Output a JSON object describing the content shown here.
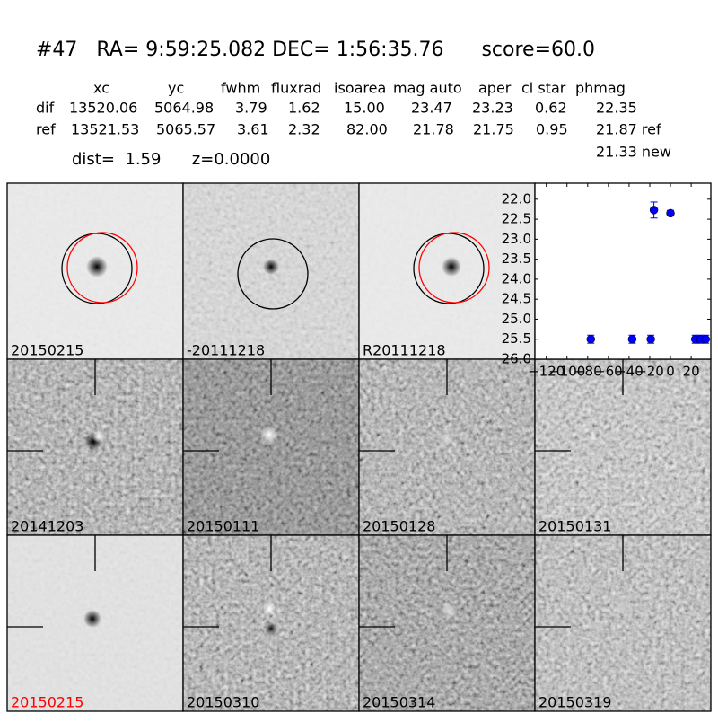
{
  "header": {
    "title": "#47   RA= 9:59:25.082 DEC= 1:56:35.76      score=60.0"
  },
  "table": {
    "columns": [
      "xc",
      "yc",
      "fwhm",
      "fluxrad",
      "isoarea",
      "mag auto",
      "aper",
      "cl star",
      "phmag"
    ],
    "rows": [
      [
        "dif",
        "13520.06",
        "5064.98",
        "3.79",
        "1.62",
        "15.00",
        "23.47",
        "23.23",
        "0.62",
        "22.35"
      ],
      [
        "ref",
        "13521.53",
        "5065.57",
        "3.61",
        "2.32",
        "82.00",
        "21.78",
        "21.75",
        "0.95",
        "21.87 ref"
      ]
    ],
    "extra": "21.33 new"
  },
  "dist": "dist=  1.59      z=0.0000",
  "stamps": [
    {
      "label": "20150215"
    },
    {
      "label": "-20111218"
    },
    {
      "label": "R20111218"
    },
    {
      "label": "20141203"
    },
    {
      "label": "20150111"
    },
    {
      "label": "20150128"
    },
    {
      "label": "20150131"
    },
    {
      "label": "20150215",
      "color": "#ff0000"
    },
    {
      "label": "20150310"
    },
    {
      "label": "20150314"
    },
    {
      "label": "20150319"
    }
  ],
  "chart_data": {
    "type": "scatter",
    "x": [
      -77,
      -37,
      -19,
      -16,
      0,
      24,
      29,
      34
    ],
    "values": [
      25.5,
      25.5,
      25.5,
      22.27,
      22.35,
      25.5,
      25.5,
      25.5
    ],
    "errors": [
      0.1,
      0.1,
      0.1,
      0.2,
      0.07,
      0.1,
      0.1,
      0.1
    ],
    "color": "#0000ff",
    "xlim": [
      -131,
      39
    ],
    "ylim": [
      26.0,
      21.6
    ],
    "xticks": [
      {
        "value": -120,
        "label": "−120"
      },
      {
        "value": -100,
        "label": "−100"
      },
      {
        "value": -80,
        "label": "−80"
      },
      {
        "value": -60,
        "label": "−60"
      },
      {
        "value": -40,
        "label": "−40"
      },
      {
        "value": -20,
        "label": "−20"
      },
      0,
      20
    ],
    "yticks": [
      {
        "value": 22,
        "label": "22.0"
      },
      22.5,
      {
        "value": 23,
        "label": "23.0"
      },
      23.5,
      {
        "value": 24,
        "label": "24.0"
      },
      24.5,
      {
        "value": 25,
        "label": "25.0"
      },
      25.5,
      {
        "value": 26,
        "label": "26.0"
      }
    ]
  }
}
